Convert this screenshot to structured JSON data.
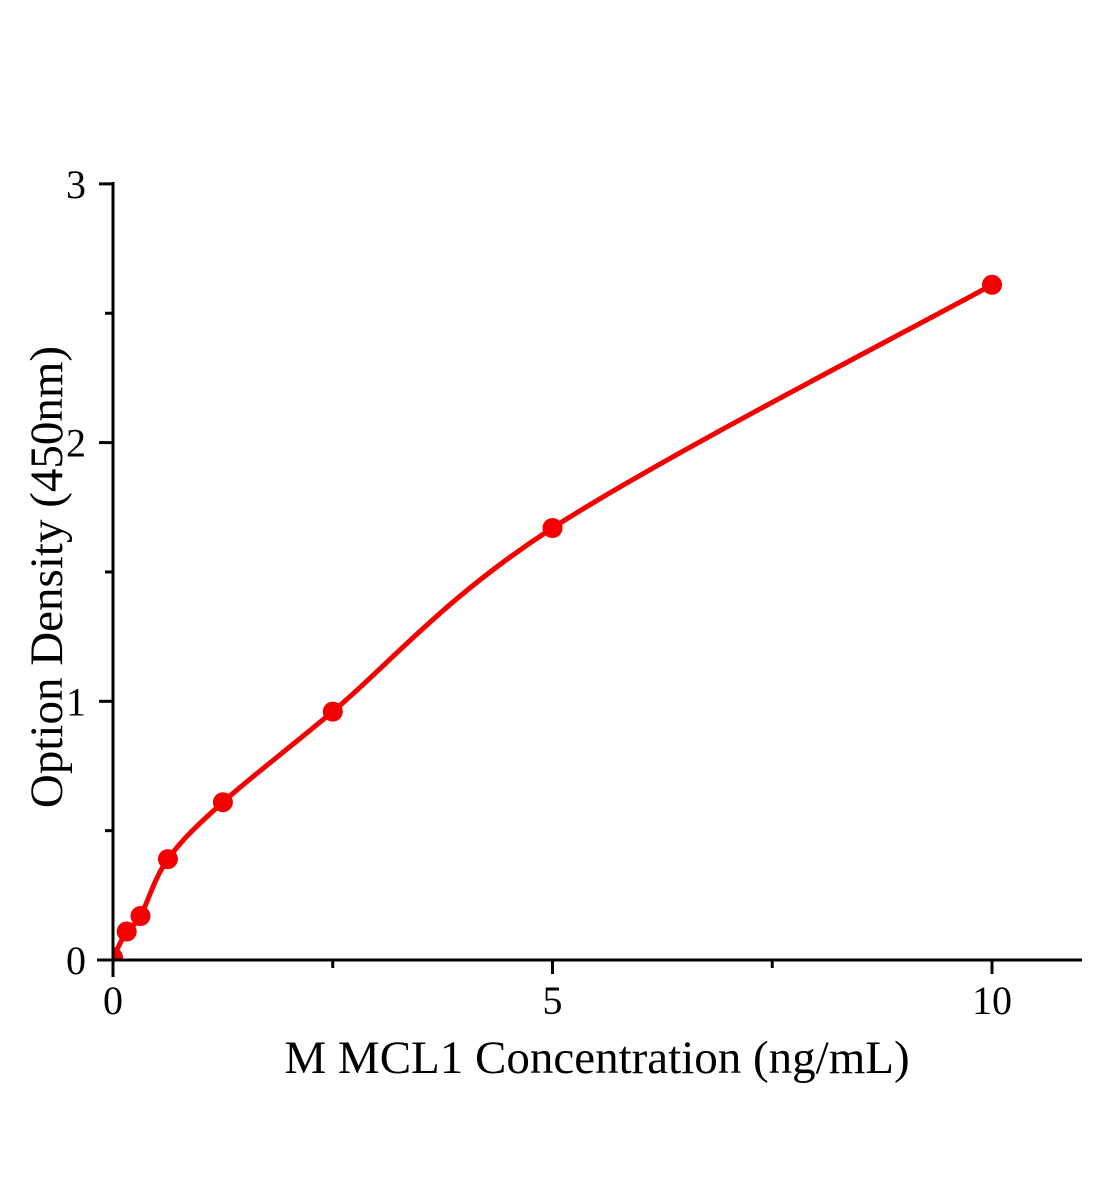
{
  "chart_data": {
    "type": "scatter",
    "subtype": "standard-curve-with-smooth-fit-line",
    "title": "",
    "xlabel": "M MCL1 Concentration（ng/mL）",
    "ylabel": "Option Density（450nm）",
    "x": [
      0,
      0.156,
      0.3125,
      0.625,
      1.25,
      2.5,
      5,
      10
    ],
    "y": [
      0.01,
      0.11,
      0.17,
      0.39,
      0.61,
      0.96,
      1.67,
      2.61
    ],
    "xlim": [
      0,
      11
    ],
    "ylim": [
      0,
      3
    ],
    "x_major_ticks": [
      0,
      5,
      10
    ],
    "x_tick_labels": [
      "0",
      "5",
      "10"
    ],
    "x_minor_ticks": [
      2.5,
      7.5
    ],
    "y_major_ticks": [
      0,
      1,
      2,
      3
    ],
    "y_tick_labels": [
      "0",
      "1",
      "2",
      "3"
    ],
    "y_minor_ticks": [
      0.5,
      1.5,
      2.5
    ],
    "grid": false,
    "legend": "none",
    "line_color": "#f40000",
    "marker_color": "#f40000",
    "axis_color": "#000000",
    "background": "#ffffff"
  }
}
